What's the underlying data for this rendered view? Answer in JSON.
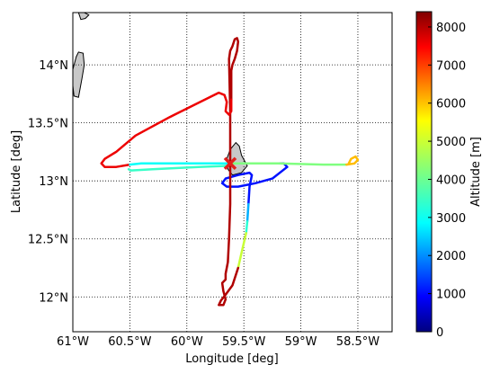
{
  "chart_data": {
    "type": "line",
    "title": "",
    "xlabel": "Longitude [deg]",
    "ylabel": "Latitude [deg]",
    "xlim": [
      -61.0,
      -58.2
    ],
    "ylim": [
      11.7,
      14.45
    ],
    "grid": true,
    "x_ticks": [
      -61.0,
      -60.5,
      -60.0,
      -59.5,
      -59.0,
      -58.5
    ],
    "x_tick_labels": [
      "61°W",
      "60.5°W",
      "60°W",
      "59.5°W",
      "59°W",
      "58.5°W"
    ],
    "y_ticks": [
      12.0,
      12.5,
      13.0,
      13.5,
      14.0
    ],
    "y_tick_labels": [
      "12°N",
      "12.5°N",
      "13°N",
      "13.5°N",
      "14°N"
    ],
    "colorbar": {
      "label": "Altitude [m]",
      "min": 0,
      "max": 8400,
      "ticks": [
        0,
        1000,
        2000,
        3000,
        4000,
        5000,
        6000,
        7000,
        8000
      ],
      "tick_labels": [
        "0",
        "1000",
        "2000",
        "3000",
        "4000",
        "5000",
        "6000",
        "7000",
        "8000"
      ],
      "colormap": "jet"
    },
    "marker": {
      "symbol": "x",
      "lon": -59.62,
      "lat": 13.15,
      "color": "#e0201b"
    },
    "land": [
      {
        "name": "barbados",
        "points": [
          [
            -59.65,
            13.19
          ],
          [
            -59.62,
            13.27
          ],
          [
            -59.57,
            13.33
          ],
          [
            -59.54,
            13.3
          ],
          [
            -59.52,
            13.22
          ],
          [
            -59.47,
            13.13
          ],
          [
            -59.52,
            13.07
          ],
          [
            -59.6,
            13.05
          ],
          [
            -59.64,
            13.1
          ]
        ]
      },
      {
        "name": "st-vincent",
        "points": [
          [
            -61.0,
            13.96
          ],
          [
            -60.97,
            14.07
          ],
          [
            -60.95,
            14.11
          ],
          [
            -60.91,
            14.1
          ],
          [
            -60.9,
            14.0
          ],
          [
            -60.92,
            13.88
          ],
          [
            -60.95,
            13.72
          ],
          [
            -60.99,
            13.73
          ],
          [
            -61.0,
            13.82
          ]
        ]
      },
      {
        "name": "island-top",
        "points": [
          [
            -60.93,
            14.39
          ],
          [
            -60.89,
            14.4
          ],
          [
            -60.86,
            14.43
          ],
          [
            -60.9,
            14.45
          ],
          [
            -60.95,
            14.45
          ]
        ]
      }
    ],
    "flight_track": [
      {
        "alt": 8000,
        "points": [
          [
            -59.62,
            13.15
          ],
          [
            -59.62,
            13.6
          ],
          [
            -59.63,
            14.05
          ],
          [
            -59.62,
            14.12
          ],
          [
            -59.6,
            14.16
          ],
          [
            -59.58,
            14.22
          ],
          [
            -59.56,
            14.23
          ],
          [
            -59.55,
            14.2
          ],
          [
            -59.56,
            14.12
          ],
          [
            -59.58,
            14.05
          ],
          [
            -59.6,
            14.0
          ],
          [
            -59.61,
            13.95
          ],
          [
            -59.61,
            13.7
          ]
        ]
      },
      {
        "alt": 7500,
        "points": [
          [
            -59.61,
            13.7
          ],
          [
            -59.61,
            13.6
          ],
          [
            -59.63,
            13.57
          ],
          [
            -59.66,
            13.6
          ],
          [
            -59.65,
            13.68
          ],
          [
            -59.67,
            13.74
          ],
          [
            -59.72,
            13.76
          ],
          [
            -60.15,
            13.55
          ],
          [
            -60.45,
            13.39
          ],
          [
            -60.62,
            13.25
          ],
          [
            -60.72,
            13.19
          ],
          [
            -60.75,
            13.15
          ],
          [
            -60.72,
            13.12
          ],
          [
            -60.62,
            13.12
          ],
          [
            -60.5,
            13.14
          ]
        ]
      },
      {
        "alt": 3200,
        "points": [
          [
            -60.5,
            13.14
          ],
          [
            -60.4,
            13.15
          ],
          [
            -60.2,
            13.15
          ],
          [
            -60.0,
            13.15
          ],
          [
            -59.8,
            13.15
          ],
          [
            -59.62,
            13.15
          ]
        ]
      },
      {
        "alt": 3600,
        "points": [
          [
            -60.51,
            13.1
          ],
          [
            -60.49,
            13.09
          ],
          [
            -60.3,
            13.1
          ],
          [
            -60.1,
            13.11
          ],
          [
            -59.9,
            13.12
          ],
          [
            -59.62,
            13.13
          ]
        ]
      },
      {
        "alt": 1200,
        "points": [
          [
            -59.62,
            13.15
          ],
          [
            -59.4,
            13.15
          ],
          [
            -59.15,
            13.15
          ],
          [
            -59.12,
            13.12
          ],
          [
            -59.25,
            13.02
          ],
          [
            -59.4,
            12.98
          ],
          [
            -59.55,
            12.95
          ],
          [
            -59.65,
            12.95
          ],
          [
            -59.69,
            12.98
          ],
          [
            -59.66,
            13.02
          ],
          [
            -59.55,
            13.05
          ],
          [
            -59.45,
            13.07
          ],
          [
            -59.43,
            13.05
          ],
          [
            -59.45,
            12.95
          ],
          [
            -59.46,
            12.8
          ]
        ]
      },
      {
        "alt": 2500,
        "points": [
          [
            -59.46,
            12.8
          ],
          [
            -59.47,
            12.65
          ]
        ]
      },
      {
        "alt": 3500,
        "points": [
          [
            -59.47,
            12.65
          ],
          [
            -59.48,
            12.55
          ]
        ]
      },
      {
        "alt": 4800,
        "points": [
          [
            -59.48,
            12.55
          ],
          [
            -59.52,
            12.38
          ],
          [
            -59.55,
            12.25
          ]
        ]
      },
      {
        "alt": 8000,
        "points": [
          [
            -59.55,
            12.25
          ],
          [
            -59.6,
            12.1
          ],
          [
            -59.66,
            12.02
          ],
          [
            -59.7,
            11.97
          ],
          [
            -59.72,
            11.93
          ],
          [
            -59.68,
            11.93
          ],
          [
            -59.66,
            11.98
          ],
          [
            -59.68,
            12.05
          ],
          [
            -59.69,
            12.12
          ],
          [
            -59.66,
            12.15
          ],
          [
            -59.66,
            12.2
          ],
          [
            -59.64,
            12.3
          ],
          [
            -59.63,
            12.5
          ],
          [
            -59.62,
            12.8
          ],
          [
            -59.62,
            13.15
          ]
        ]
      },
      {
        "alt": 4200,
        "points": [
          [
            -59.62,
            13.15
          ],
          [
            -59.2,
            13.15
          ],
          [
            -58.8,
            13.14
          ],
          [
            -58.6,
            13.14
          ]
        ]
      },
      {
        "alt": 5800,
        "points": [
          [
            -58.6,
            13.14
          ],
          [
            -58.53,
            13.15
          ],
          [
            -58.5,
            13.18
          ],
          [
            -58.52,
            13.21
          ],
          [
            -58.56,
            13.19
          ],
          [
            -58.58,
            13.15
          ]
        ]
      }
    ]
  }
}
